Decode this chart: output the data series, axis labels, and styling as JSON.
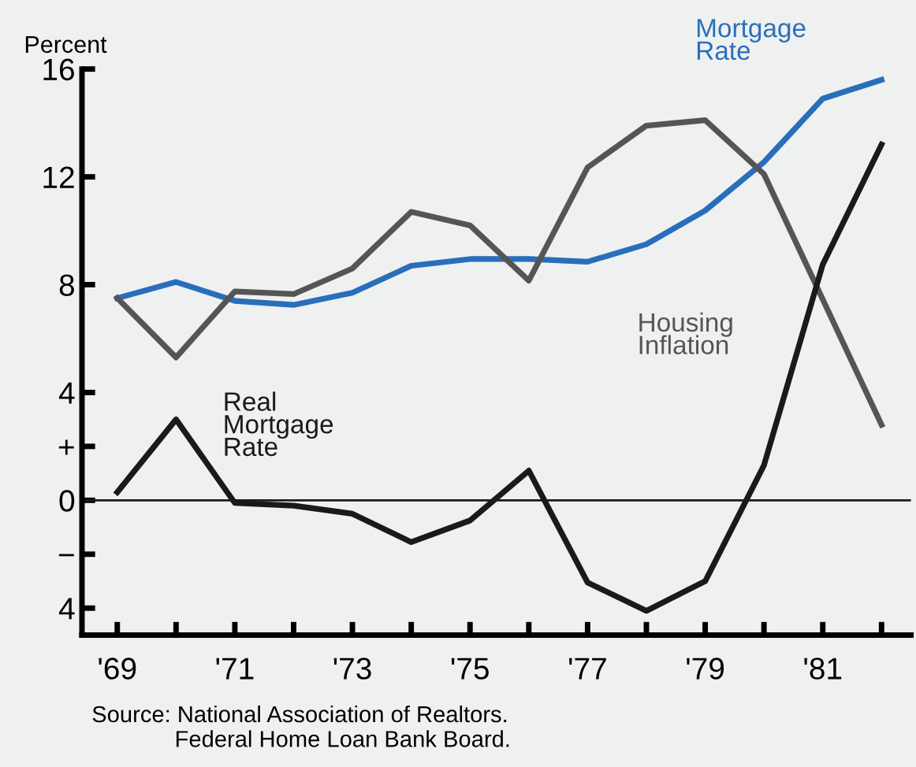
{
  "chart_data": {
    "type": "line",
    "ylabel": "Percent",
    "x": [
      1969,
      1970,
      1971,
      1972,
      1973,
      1974,
      1975,
      1976,
      1977,
      1978,
      1979,
      1980,
      1981,
      1982
    ],
    "series": [
      {
        "name": "Mortgage Rate",
        "color": "#2a6ebb",
        "values": [
          7.5,
          8.1,
          7.4,
          7.25,
          7.7,
          8.7,
          8.95,
          8.95,
          8.85,
          9.5,
          10.75,
          12.55,
          14.9,
          15.6
        ]
      },
      {
        "name": "Housing Inflation",
        "color": "#555555",
        "values": [
          7.5,
          5.3,
          7.75,
          7.65,
          8.6,
          10.7,
          10.2,
          8.15,
          12.35,
          13.9,
          14.1,
          12.1,
          7.45,
          2.8
        ]
      },
      {
        "name": "Real Mortgage Rate",
        "color": "#1a1a1a",
        "values": [
          0.3,
          3.0,
          -0.1,
          -0.2,
          -0.5,
          -1.55,
          -0.75,
          1.1,
          -3.05,
          -4.1,
          -3.0,
          1.3,
          8.75,
          13.2
        ]
      }
    ],
    "xlim": [
      1968.4,
      1982.5
    ],
    "xticks": [
      {
        "value": 1969,
        "label": "'69"
      },
      {
        "value": 1970,
        "label": null
      },
      {
        "value": 1971,
        "label": "'71"
      },
      {
        "value": 1972,
        "label": null
      },
      {
        "value": 1973,
        "label": "'73"
      },
      {
        "value": 1974,
        "label": null
      },
      {
        "value": 1975,
        "label": "'75"
      },
      {
        "value": 1976,
        "label": null
      },
      {
        "value": 1977,
        "label": "'77"
      },
      {
        "value": 1978,
        "label": null
      },
      {
        "value": 1979,
        "label": "'79"
      },
      {
        "value": 1980,
        "label": null
      },
      {
        "value": 1981,
        "label": "'81"
      },
      {
        "value": 1982,
        "label": null
      }
    ],
    "ylim": [
      -5,
      16
    ],
    "yticks": [
      {
        "value": -4,
        "label": "4"
      },
      {
        "value": -2,
        "label": "−"
      },
      0,
      {
        "value": 2,
        "label": "+"
      },
      4,
      8,
      12,
      16
    ],
    "ref_lines": [
      {
        "axis": "y",
        "value": 0,
        "label": null,
        "color": "#1a1a1a"
      }
    ],
    "annotations": [
      "Source: National Association of Realtors.\n             Federal Home Loan Bank Board."
    ],
    "grid": false,
    "legend": false,
    "marker": "none",
    "line_style": "solid"
  }
}
